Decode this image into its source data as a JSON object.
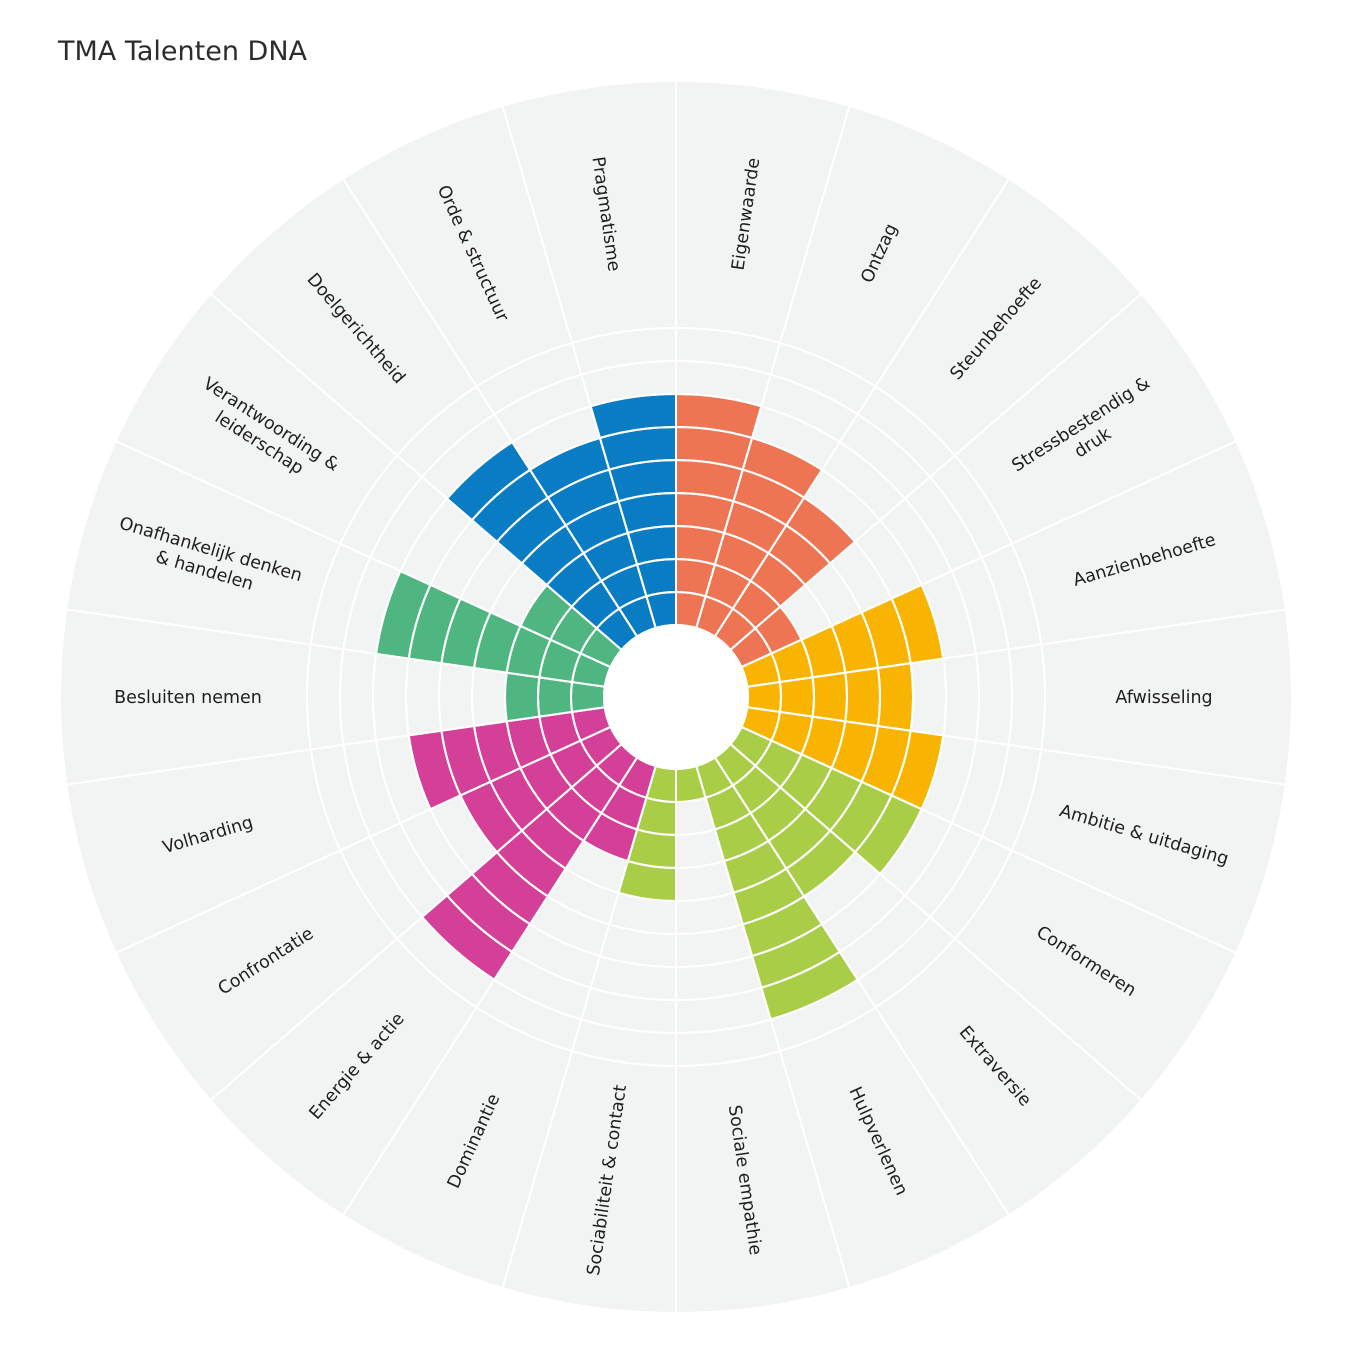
{
  "title": "TMA Talenten DNA",
  "chart_data": {
    "type": "radial-bar",
    "title": "TMA Talenten DNA",
    "max_level": 9,
    "categories": [
      {
        "name": "Eigenwaarde",
        "lines": [
          "Eigenwaarde"
        ],
        "value": 7,
        "color": "#ee7553"
      },
      {
        "name": "Ontzag",
        "lines": [
          "Ontzag"
        ],
        "value": 6,
        "color": "#ee7553"
      },
      {
        "name": "Steunbehoefte",
        "lines": [
          "Steunbehoefte"
        ],
        "value": 5,
        "color": "#ee7553"
      },
      {
        "name": "Stressbestendig & druk",
        "lines": [
          "Stressbestendig &",
          "druk"
        ],
        "value": 2,
        "color": "#ee7553"
      },
      {
        "name": "Aanzienbehoefte",
        "lines": [
          "Aanzienbehoefte"
        ],
        "value": 6,
        "color": "#f8b400"
      },
      {
        "name": "Afwisseling",
        "lines": [
          "Afwisseling"
        ],
        "value": 5,
        "color": "#f8b400"
      },
      {
        "name": "Ambitie & uitdaging",
        "lines": [
          "Ambitie & uitdaging"
        ],
        "value": 6,
        "color": "#f8b400"
      },
      {
        "name": "Conformeren",
        "lines": [
          "Conformeren"
        ],
        "value": 6,
        "color": "#a9cd47"
      },
      {
        "name": "Extraversie",
        "lines": [
          "Extraversie"
        ],
        "value": 5,
        "color": "#a9cd47"
      },
      {
        "name": "Hulpverlenen",
        "lines": [
          "Hulpverlenen"
        ],
        "value": 8,
        "color": "#a9cd47"
      },
      {
        "name": "Sociale empathie",
        "lines": [
          "Sociale empathie"
        ],
        "value": 1,
        "color": "#a9cd47"
      },
      {
        "name": "Sociabiliteit & contact",
        "lines": [
          "Sociabiliteit & contact"
        ],
        "value": 4,
        "color": "#a9cd47"
      },
      {
        "name": "Dominantie",
        "lines": [
          "Dominantie"
        ],
        "value": 3,
        "color": "#d43f97"
      },
      {
        "name": "Energie & actie",
        "lines": [
          "Energie & actie"
        ],
        "value": 8,
        "color": "#d43f97"
      },
      {
        "name": "Confrontatie",
        "lines": [
          "Confrontatie"
        ],
        "value": 5,
        "color": "#d43f97"
      },
      {
        "name": "Volharding",
        "lines": [
          "Volharding"
        ],
        "value": 6,
        "color": "#d43f97"
      },
      {
        "name": "Besluiten nemen",
        "lines": [
          "Besluiten nemen"
        ],
        "value": 3,
        "color": "#4fb581"
      },
      {
        "name": "Onafhankelijk denken & handelen",
        "lines": [
          "Onafhankelijk denken",
          "& handelen"
        ],
        "value": 7,
        "color": "#4fb581"
      },
      {
        "name": "Verantwoording & leiderschap",
        "lines": [
          "Verantwoording &",
          "leiderschap"
        ],
        "value": 3,
        "color": "#4fb581"
      },
      {
        "name": "Doelgerichtheid",
        "lines": [
          "Doelgerichtheid"
        ],
        "value": 7,
        "color": "#0a7cc4"
      },
      {
        "name": "Orde & structuur",
        "lines": [
          "Orde & structuur"
        ],
        "value": 6,
        "color": "#0a7cc4"
      },
      {
        "name": "Pragmatisme",
        "lines": [
          "Pragmatisme"
        ],
        "value": 7,
        "color": "#0a7cc4"
      }
    ]
  },
  "colors": {
    "background_disc": "#f2f4f4",
    "grid_lines": "#ffffff",
    "label_text": "#1e1e1e"
  }
}
